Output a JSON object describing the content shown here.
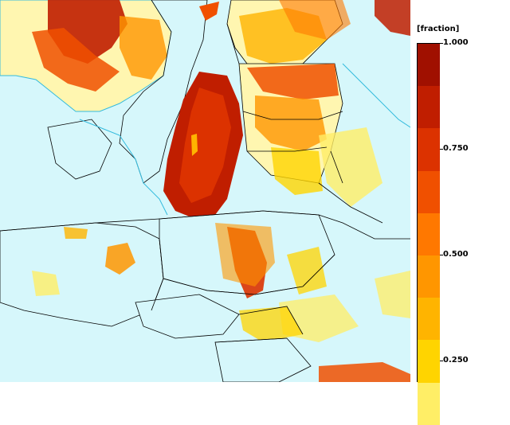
{
  "legend": {
    "unit": "[fraction]",
    "colors": [
      "#ffff99",
      "#ffee66",
      "#ffd400",
      "#ffb400",
      "#ff9600",
      "#ff7800",
      "#f05000",
      "#dc3200",
      "#c01e00",
      "#a01000"
    ],
    "ticks": [
      {
        "label": "1.000",
        "value": 1.0
      },
      {
        "label": "0.750",
        "value": 0.75
      },
      {
        "label": "0.500",
        "value": 0.5
      },
      {
        "label": "0.250",
        "value": 0.25
      }
    ]
  },
  "map": {
    "sea_color": "#d6f7fb",
    "border_color": "#000000",
    "coast_color": "#33bbdd"
  }
}
